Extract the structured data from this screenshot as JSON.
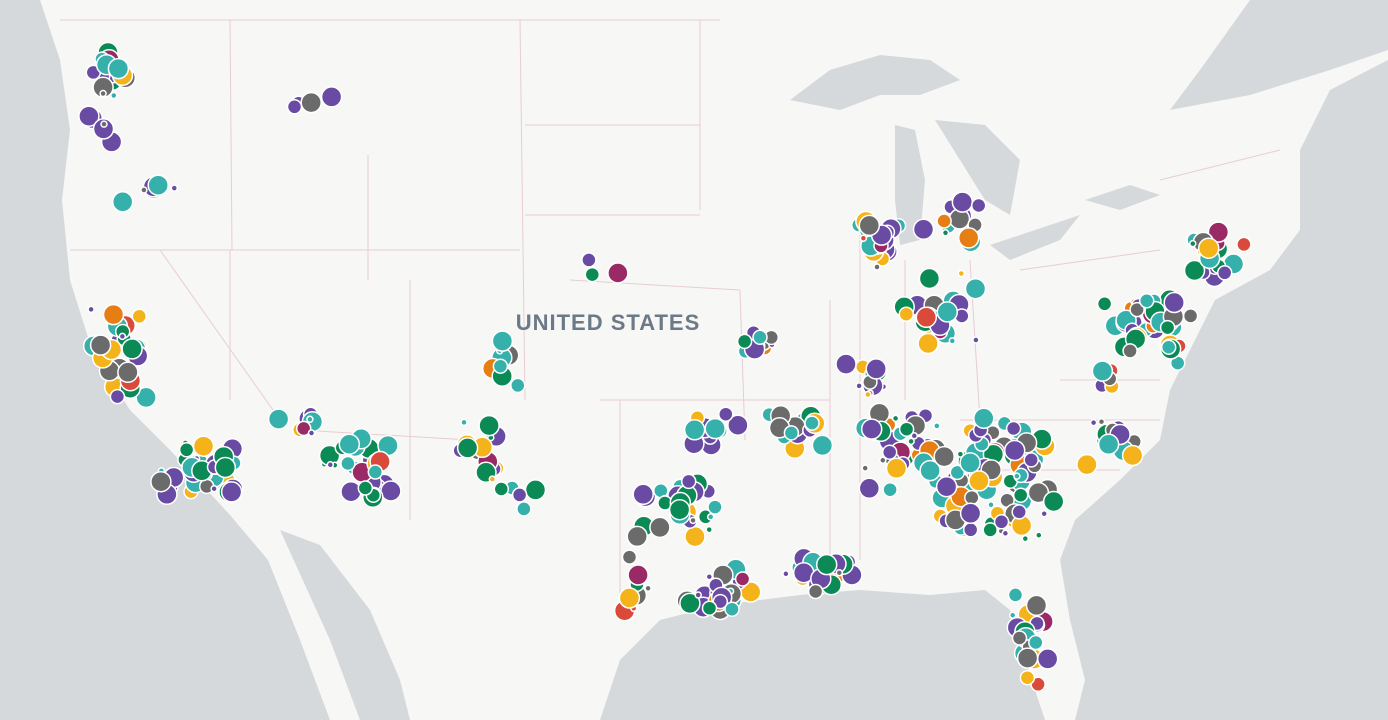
{
  "map": {
    "country_label": "UNITED STATES"
  }
}
